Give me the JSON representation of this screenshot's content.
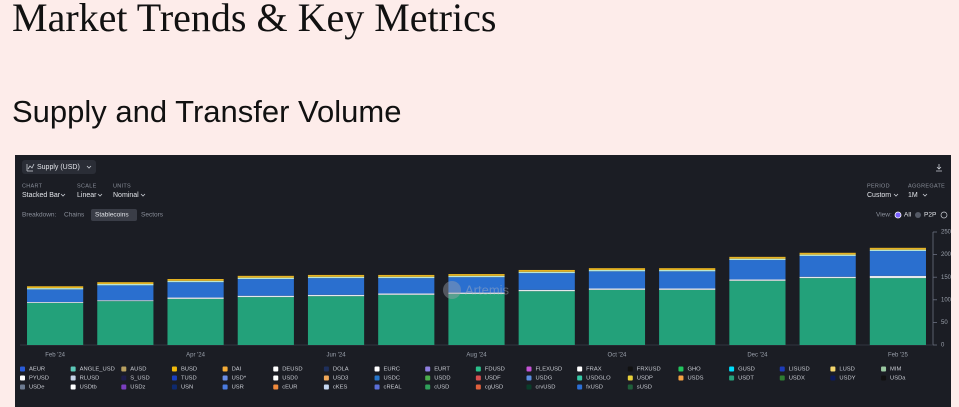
{
  "page": {
    "title": "Market Trends & Key Metrics",
    "subtitle": "Supply and Transfer Volume"
  },
  "controls": {
    "metric": "Supply (USD)",
    "chart_label": "CHART",
    "chart_value": "Stacked Bar",
    "scale_label": "SCALE",
    "scale_value": "Linear",
    "units_label": "UNITS",
    "units_value": "Nominal",
    "period_label": "PERIOD",
    "period_value": "Custom",
    "aggregate_label": "AGGREGATE",
    "aggregate_value": "1M",
    "breakdown_label": "Breakdown:",
    "breakdown_options": [
      "Chains",
      "Stablecoins",
      "Sectors"
    ],
    "view_label": "View:",
    "view_options": [
      "All",
      "P2P"
    ],
    "watermark": "Artemis"
  },
  "chart_data": {
    "type": "bar",
    "stacked": true,
    "categories": [
      "Feb '24",
      null,
      "Apr '24",
      null,
      "Jun '24",
      null,
      "Aug '24",
      null,
      "Oct '24",
      null,
      "Dec '24",
      null,
      "Feb '25"
    ],
    "series": [
      {
        "name": "USDT",
        "color": "#23a17a",
        "values": [
          93,
          97,
          102,
          106,
          108,
          111,
          113,
          119,
          122,
          122,
          142,
          148,
          148
        ]
      },
      {
        "name": "USD0",
        "color": "#e6e8ec",
        "values": [
          2,
          2,
          3,
          3,
          3,
          3,
          3,
          3,
          3,
          3,
          3,
          3,
          5
        ]
      },
      {
        "name": "USDC",
        "color": "#2a6fcf",
        "values": [
          28,
          33,
          34,
          37,
          37,
          34,
          34,
          37,
          38,
          38,
          43,
          46,
          55
        ]
      },
      {
        "name": "FDUSD",
        "color": "#b9e6d4",
        "values": [
          3,
          3,
          3,
          3,
          3,
          3,
          3,
          3,
          3,
          3,
          3,
          3,
          3
        ]
      },
      {
        "name": "DAI",
        "color": "#e6b422",
        "values": [
          4,
          4,
          4,
          4,
          4,
          4,
          4,
          4,
          4,
          4,
          4,
          4,
          4
        ]
      }
    ],
    "ylim": [
      0,
      250
    ],
    "yticks": [
      0,
      50,
      100,
      150,
      200,
      250
    ],
    "legend": [
      {
        "name": "AEUR",
        "color": "#2a5bd7"
      },
      {
        "name": "ANGLE_USD",
        "color": "#5cc8b8"
      },
      {
        "name": "AUSD",
        "color": "#b8a060"
      },
      {
        "name": "BUSD",
        "color": "#f0b90b"
      },
      {
        "name": "DAI",
        "color": "#f5ac37"
      },
      {
        "name": "DEUSD",
        "color": "#ffffff"
      },
      {
        "name": "DOLA",
        "color": "#1e2f5c"
      },
      {
        "name": "EURC",
        "color": "#ffffff"
      },
      {
        "name": "EURT",
        "color": "#8f7fe0"
      },
      {
        "name": "FDUSD",
        "color": "#2bbf8a"
      },
      {
        "name": "FLEXUSD",
        "color": "#c454d6"
      },
      {
        "name": "FRAX",
        "color": "#ffffff"
      },
      {
        "name": "FRXUSD",
        "color": "#111111"
      },
      {
        "name": "GHO",
        "color": "#22c55e"
      },
      {
        "name": "GUSD",
        "color": "#00dcfa"
      },
      {
        "name": "LISUSD",
        "color": "#1d3bb8"
      },
      {
        "name": "LUSD",
        "color": "#f5d76e"
      },
      {
        "name": "MIM",
        "color": "#9ac7a0"
      },
      {
        "name": "PYUSD",
        "color": "#ffffff"
      },
      {
        "name": "RLUSD",
        "color": "#c5d2e6"
      },
      {
        "name": "S_USD",
        "color": "#1e1e4a"
      },
      {
        "name": "TUSD",
        "color": "#1a3fbf"
      },
      {
        "name": "USD*",
        "color": "#6b8ee6"
      },
      {
        "name": "USD0",
        "color": "#ffffff"
      },
      {
        "name": "USD3",
        "color": "#f0a85a"
      },
      {
        "name": "USDC",
        "color": "#2775ca"
      },
      {
        "name": "USDD",
        "color": "#4cae4c"
      },
      {
        "name": "USDF",
        "color": "#d94f4f"
      },
      {
        "name": "USDG",
        "color": "#5b8de0"
      },
      {
        "name": "USDGLO",
        "color": "#35c7a5"
      },
      {
        "name": "USDP",
        "color": "#e8d13a"
      },
      {
        "name": "USDS",
        "color": "#f5a142"
      },
      {
        "name": "USDT",
        "color": "#26a17b"
      },
      {
        "name": "USDX",
        "color": "#2e7d32"
      },
      {
        "name": "USDY",
        "color": "#0c1a5c"
      },
      {
        "name": "USDa",
        "color": "#111111"
      },
      {
        "name": "USDe",
        "color": "#6c7a90"
      },
      {
        "name": "USDtb",
        "color": "#ffffff"
      },
      {
        "name": "USDz",
        "color": "#7b3fbf"
      },
      {
        "name": "USN",
        "color": "#0f2a6e"
      },
      {
        "name": "USR",
        "color": "#4a7be0"
      },
      {
        "name": "cEUR",
        "color": "#f08a3c"
      },
      {
        "name": "cKES",
        "color": "#c5d6f0"
      },
      {
        "name": "cREAL",
        "color": "#5b6fd8"
      },
      {
        "name": "cUSD",
        "color": "#2fa05a"
      },
      {
        "name": "cgUSD",
        "color": "#e0603c"
      },
      {
        "name": "crvUSD",
        "color": "#0a3d2a"
      },
      {
        "name": "fxUSD",
        "color": "#2b6fd6"
      },
      {
        "name": "sUSD",
        "color": "#1f5f3a"
      }
    ]
  }
}
